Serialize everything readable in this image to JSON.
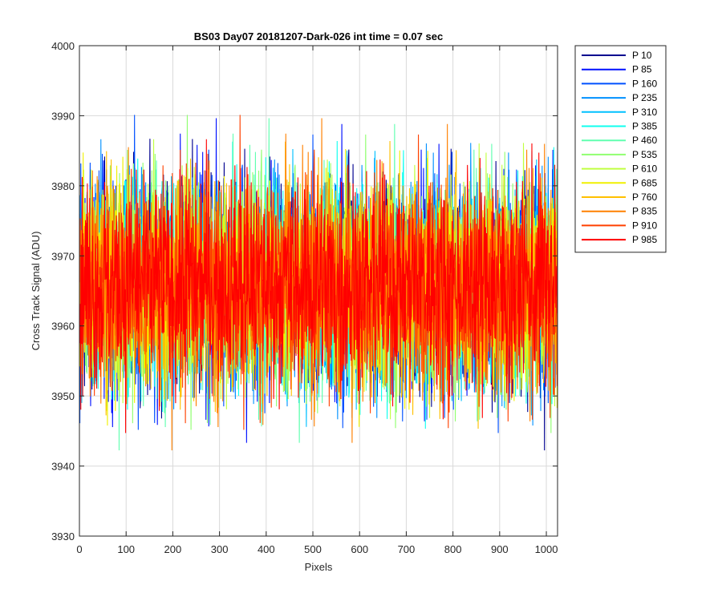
{
  "chart_data": {
    "type": "line",
    "title": "BS03 Day07 20181207-Dark-026 int time = 0.07 sec",
    "xlabel": "Pixels",
    "ylabel": "Cross Track Signal (ADU)",
    "xlim": [
      0,
      1024
    ],
    "ylim": [
      3930,
      4000
    ],
    "x_ticks": [
      0,
      100,
      200,
      300,
      400,
      500,
      600,
      700,
      800,
      900,
      1000
    ],
    "y_ticks": [
      3930,
      3940,
      3950,
      3960,
      3970,
      3980,
      3990,
      4000
    ],
    "grid": true,
    "legend_position": "outside-top-right",
    "x_start": 1,
    "x_end": 1024,
    "noise_center": 3966,
    "noise_min": 3935,
    "noise_max": 3997,
    "series": [
      {
        "name": "P 10",
        "color": "#00008f"
      },
      {
        "name": "P 85",
        "color": "#0010ff"
      },
      {
        "name": "P 160",
        "color": "#0050ff"
      },
      {
        "name": "P 235",
        "color": "#0090ff"
      },
      {
        "name": "P 310",
        "color": "#00c0ff"
      },
      {
        "name": "P 385",
        "color": "#10ffef"
      },
      {
        "name": "P 460",
        "color": "#60ffb0"
      },
      {
        "name": "P 535",
        "color": "#90ff70"
      },
      {
        "name": "P 610",
        "color": "#c0ff40"
      },
      {
        "name": "P 685",
        "color": "#f0f000"
      },
      {
        "name": "P 760",
        "color": "#ffc000"
      },
      {
        "name": "P 835",
        "color": "#ff8000"
      },
      {
        "name": "P 910",
        "color": "#ff4000"
      },
      {
        "name": "P 985",
        "color": "#ff0000"
      }
    ]
  }
}
